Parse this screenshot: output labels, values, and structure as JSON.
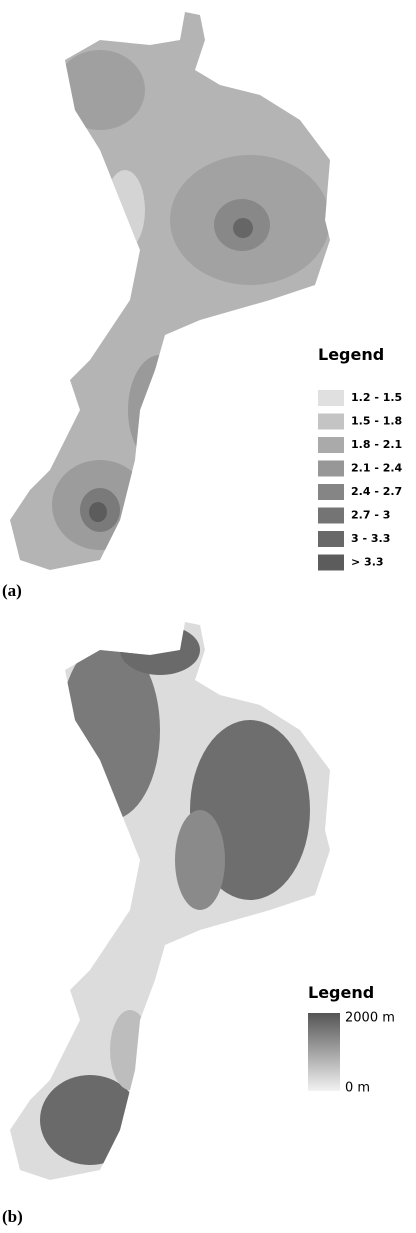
{
  "panels": [
    {
      "label": "(a)",
      "legend": {
        "title": "Legend",
        "items": [
          {
            "label": "1.2 - 1.5",
            "color": "#e0e0e0"
          },
          {
            "label": "1.5 - 1.8",
            "color": "#c4c4c4"
          },
          {
            "label": "1.8 - 2.1",
            "color": "#aaaaaa"
          },
          {
            "label": "2.1 - 2.4",
            "color": "#979797"
          },
          {
            "label": "2.4 - 2.7",
            "color": "#858585"
          },
          {
            "label": "2.7 - 3",
            "color": "#747474"
          },
          {
            "label": "3 - 3.3",
            "color": "#686868"
          },
          {
            "label": "> 3.3",
            "color": "#5c5c5c"
          }
        ]
      }
    },
    {
      "label": "(b)",
      "legend": {
        "title": "Legend",
        "max_label": "2000 m",
        "min_label": "0 m",
        "ramp": [
          "#555555",
          "#f2f2f2"
        ]
      }
    }
  ]
}
